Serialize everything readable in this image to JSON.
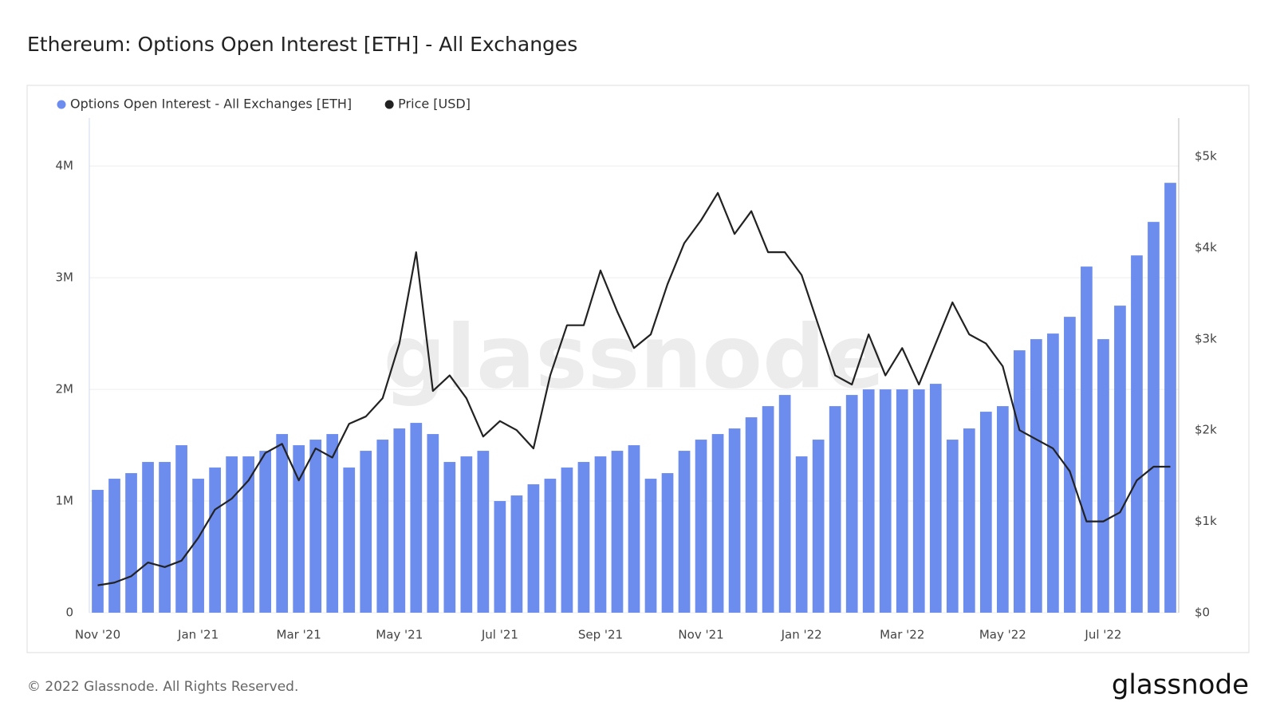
{
  "chart_data": {
    "type": "bar",
    "title": "Ethereum: Options Open Interest [ETH] - All Exchanges",
    "footer": "© 2022 Glassnode. All Rights Reserved.",
    "brand": "glassnode",
    "watermark": "glassnode",
    "categories": [
      "Nov '20",
      null,
      null,
      null,
      null,
      null,
      "Jan '21",
      null,
      null,
      null,
      null,
      null,
      "Mar '21",
      null,
      null,
      null,
      null,
      null,
      "May '21",
      null,
      null,
      null,
      null,
      null,
      "Jul '21",
      null,
      null,
      null,
      null,
      null,
      "Sep '21",
      null,
      null,
      null,
      null,
      null,
      "Nov '21",
      null,
      null,
      null,
      null,
      null,
      "Jan '22",
      null,
      null,
      null,
      null,
      null,
      "Mar '22",
      null,
      null,
      null,
      null,
      null,
      "May '22",
      null,
      null,
      null,
      null,
      null,
      "Jul '22",
      null,
      null,
      null,
      null
    ],
    "series": [
      {
        "name": "Options Open Interest - All Exchanges [ETH]",
        "type": "bar",
        "color": "#6c8cee",
        "values": [
          1100000,
          1200000,
          1250000,
          1350000,
          1350000,
          1500000,
          1200000,
          1300000,
          1400000,
          1400000,
          1450000,
          1600000,
          1500000,
          1550000,
          1600000,
          1300000,
          1450000,
          1550000,
          1650000,
          1700000,
          1600000,
          1350000,
          1400000,
          1450000,
          1000000,
          1050000,
          1150000,
          1200000,
          1300000,
          1350000,
          1400000,
          1450000,
          1500000,
          1200000,
          1250000,
          1450000,
          1550000,
          1600000,
          1650000,
          1750000,
          1850000,
          1950000,
          1400000,
          1550000,
          1850000,
          1950000,
          2000000,
          2000000,
          2000000,
          2000000,
          2050000,
          1550000,
          1650000,
          1800000,
          1850000,
          2350000,
          2450000,
          2500000,
          2650000,
          3100000,
          2450000,
          2750000,
          3200000,
          3500000,
          3850000
        ]
      },
      {
        "name": "Price [USD]",
        "type": "line",
        "axis": "y2",
        "color": "#222222",
        "values": [
          300,
          330,
          400,
          550,
          500,
          570,
          820,
          1130,
          1250,
          1450,
          1750,
          1850,
          1450,
          1800,
          1700,
          2070,
          2150,
          2350,
          2950,
          3950,
          2430,
          2600,
          2350,
          1930,
          2100,
          2000,
          1800,
          2600,
          3150,
          3150,
          3750,
          3300,
          2900,
          3050,
          3600,
          4050,
          4300,
          4600,
          4150,
          4400,
          3950,
          3950,
          3700,
          3150,
          2600,
          2500,
          3050,
          2600,
          2900,
          2500,
          2950,
          3400,
          3050,
          2950,
          2700,
          2000,
          1900,
          1800,
          1550,
          1000,
          1000,
          1100,
          1450,
          1600,
          1600
        ]
      }
    ],
    "ylim": [
      0,
      4430000
    ],
    "yticks": [
      {
        "value": 0,
        "label": "0"
      },
      {
        "value": 1000000,
        "label": "1M"
      },
      {
        "value": 2000000,
        "label": "2M"
      },
      {
        "value": 3000000,
        "label": "3M"
      },
      {
        "value": 4000000,
        "label": "4M"
      }
    ],
    "y2lim": [
      0,
      5420
    ],
    "y2ticks": [
      {
        "value": 0,
        "label": "$0"
      },
      {
        "value": 1000,
        "label": "$1k"
      },
      {
        "value": 2000,
        "label": "$2k"
      },
      {
        "value": 3000,
        "label": "$3k"
      },
      {
        "value": 4000,
        "label": "$4k"
      },
      {
        "value": 5000,
        "label": "$5k"
      }
    ],
    "grid": true
  }
}
